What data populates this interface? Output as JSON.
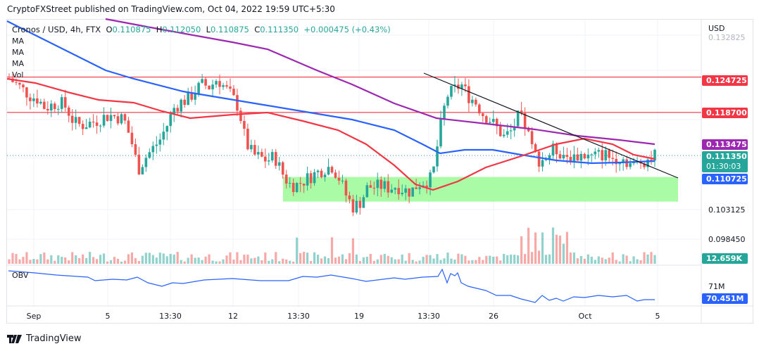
{
  "header": {
    "published": "CryptoFXStreet published on TradingView.com, Oct 04, 2022 19:59 UTC+5:30"
  },
  "legend": {
    "symbol": "Cronos / USD, 4h, FTX",
    "o_label": "O",
    "o": "0.110875",
    "h_label": "H",
    "h": "0.112050",
    "l_label": "L",
    "l": "0.110875",
    "c_label": "C",
    "c": "0.111350",
    "change": "+0.000475 (+0.43%)",
    "indicators": [
      "MA",
      "MA",
      "MA",
      "Vol"
    ],
    "obv_label": "OBV"
  },
  "axis": {
    "currency": "USD",
    "top_tick": "0.132825",
    "ticks": [
      "0.103125",
      "0.098450"
    ],
    "obv_tick": "71M"
  },
  "tags": {
    "res1": {
      "value": "0.124725",
      "color": "#f23645"
    },
    "res2": {
      "value": "0.118700",
      "color": "#f23645"
    },
    "ma200": {
      "value": "0.113475",
      "color": "#9c27b0"
    },
    "last": {
      "value": "0.111350",
      "countdown": "01:30:03",
      "color": "#26a69a"
    },
    "ma100": {
      "value": "0.110725",
      "color": "#2962ff"
    },
    "vol": {
      "value": "12.659K",
      "color": "#26a69a"
    },
    "obv": {
      "value": "70.451M",
      "color": "#2962ff"
    }
  },
  "xaxis": [
    "Sep",
    "5",
    "13:30",
    "12",
    "13:30",
    "19",
    "13:30",
    "26",
    "Oct",
    "5"
  ],
  "brand": "TradingView",
  "chart_data": {
    "type": "candlestick",
    "title": "Cronos / USD, 4h, FTX",
    "xlabel": "",
    "ylabel": "USD",
    "x_ticks": [
      "Sep",
      "5",
      "13:30",
      "12",
      "13:30",
      "19",
      "13:30",
      "26",
      "Oct",
      "5"
    ],
    "y_ticks": [
      0.132825,
      0.103125,
      0.09845
    ],
    "ylim": [
      0.0965,
      0.1345
    ],
    "horizontal_levels": [
      {
        "name": "resistance",
        "value": 0.124725,
        "color": "#f23645"
      },
      {
        "name": "resistance",
        "value": 0.1187,
        "color": "#f23645"
      }
    ],
    "demand_zone": {
      "from": 0.1035,
      "to": 0.1077,
      "color": "#a5fba0"
    },
    "trendline": {
      "from": [
        0.1265,
        "Sep 21"
      ],
      "to": [
        0.1097,
        "Oct 5"
      ],
      "color": "#131722"
    },
    "series": [
      {
        "name": "MA 50",
        "color": "#f23645",
        "last": 0.1114
      },
      {
        "name": "MA 100",
        "color": "#2962ff",
        "last": 0.110725
      },
      {
        "name": "MA 200",
        "color": "#9c27b0",
        "last": 0.113475
      }
    ],
    "close_path": [
      0.1245,
      0.1235,
      0.1225,
      0.1215,
      0.121,
      0.1195,
      0.12,
      0.1205,
      0.1195,
      0.117,
      0.1165,
      0.1168,
      0.1172,
      0.1178,
      0.1182,
      0.118,
      0.1175,
      0.114,
      0.109,
      0.111,
      0.1125,
      0.114,
      0.1165,
      0.1195,
      0.1205,
      0.121,
      0.1225,
      0.1235,
      0.123,
      0.1245,
      0.123,
      0.1215,
      0.1195,
      0.1135,
      0.1115,
      0.111,
      0.1105,
      0.1112,
      0.1085,
      0.1065,
      0.1063,
      0.107,
      0.1078,
      0.1085,
      0.1092,
      0.1095,
      0.1075,
      0.1045,
      0.1025,
      0.1035,
      0.106,
      0.106,
      0.1062,
      0.1058,
      0.1062,
      0.1055,
      0.1052,
      0.1065,
      0.107,
      0.1075,
      0.1155,
      0.1215,
      0.1225,
      0.1235,
      0.1215,
      0.1205,
      0.1185,
      0.1175,
      0.116,
      0.1145,
      0.1155,
      0.118,
      0.1165,
      0.112,
      0.1105,
      0.1112,
      0.1125,
      0.1118,
      0.1112,
      0.1112,
      0.1115,
      0.111,
      0.1114,
      0.1116,
      0.1108,
      0.1112,
      0.1105,
      0.1095,
      0.1103,
      0.1108,
      0.1113
    ],
    "volume_last": "12.659K",
    "obv": {
      "name": "OBV",
      "color": "#2962ff",
      "last": "70.451M",
      "tick": "71M"
    }
  }
}
